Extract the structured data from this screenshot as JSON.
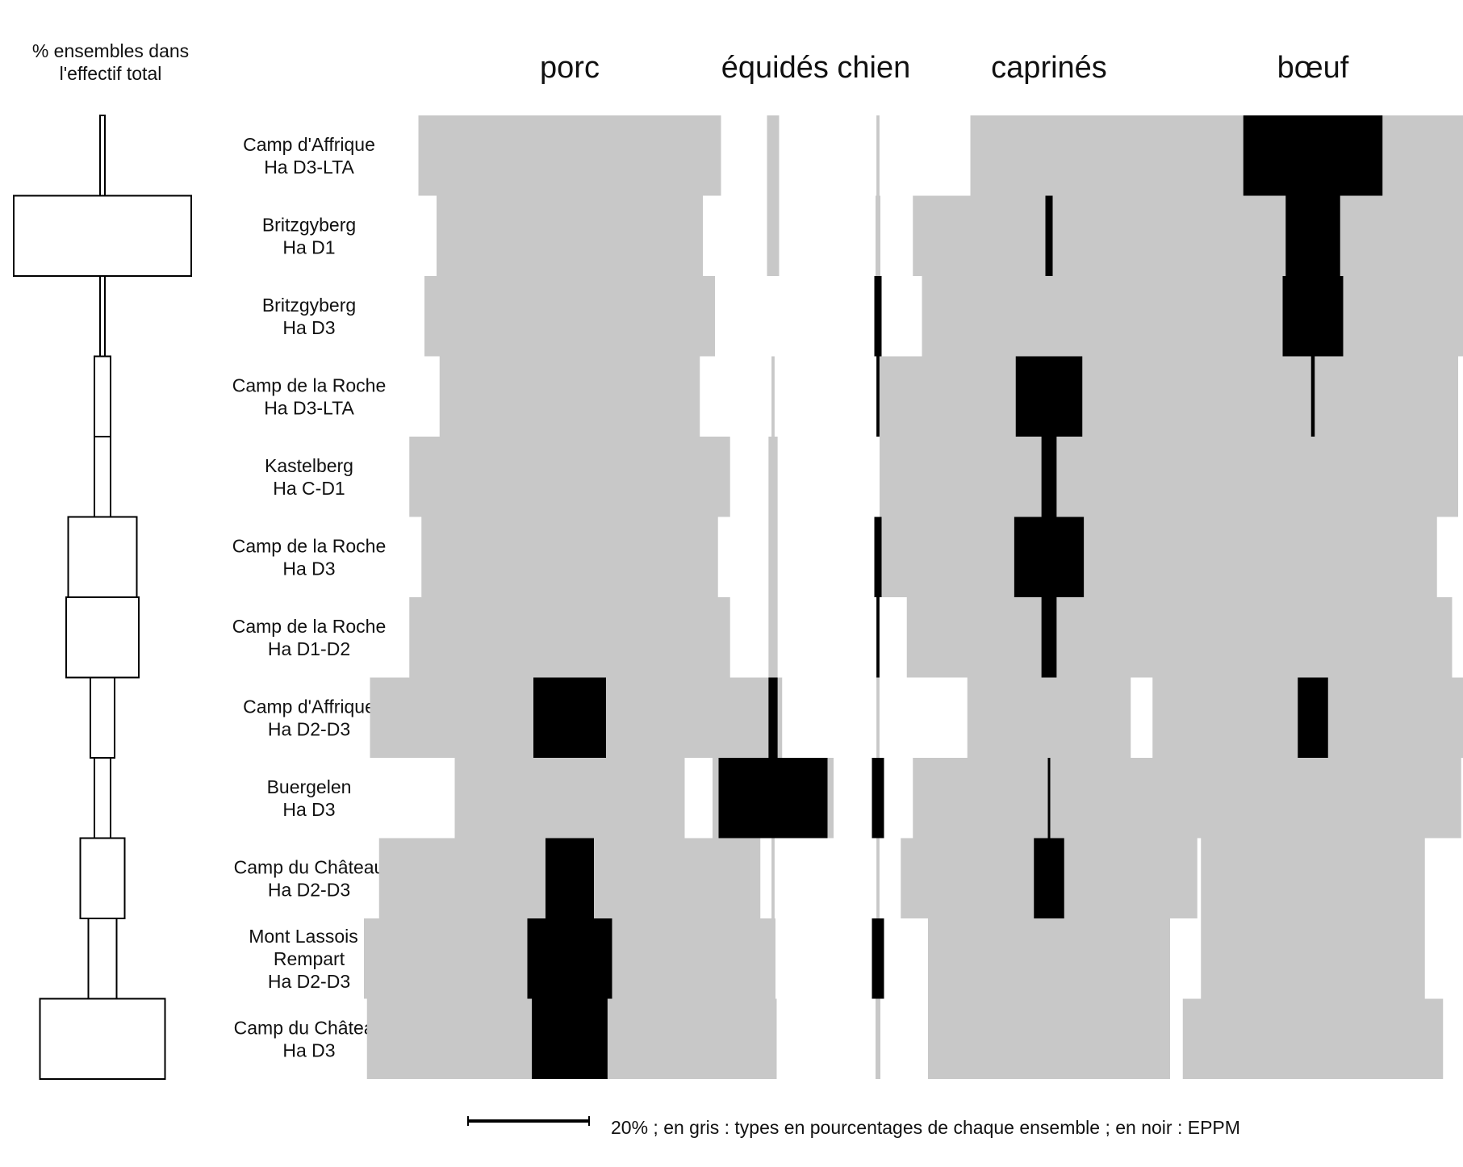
{
  "chart_data": {
    "type": "battleship",
    "left_title_lines": [
      "% ensembles dans",
      "l'effectif total"
    ],
    "columns": [
      "porc",
      "équidés",
      "chien",
      "caprinés",
      "bœuf"
    ],
    "column_titles": {
      "equides_chien": "équidés  chien"
    },
    "rows": [
      {
        "label": [
          "Camp d'Affrique",
          "Ha D3-LTA"
        ],
        "ensemble": 1,
        "percent": [
          50,
          2,
          0.5,
          26,
          71
        ],
        "eppm": [
          0,
          0,
          0,
          0,
          23
        ]
      },
      {
        "label": [
          "Britzgyberg",
          "Ha D1"
        ],
        "ensemble": 44,
        "percent": [
          44,
          2,
          0.8,
          45,
          57
        ],
        "eppm": [
          0,
          0,
          0,
          1.2,
          9
        ]
      },
      {
        "label": [
          "Britzgyberg",
          "Ha D3"
        ],
        "ensemble": 1,
        "percent": [
          48,
          0,
          0.8,
          42,
          57
        ],
        "eppm": [
          0,
          0,
          1.2,
          0,
          10
        ]
      },
      {
        "label": [
          "Camp de la Roche",
          "Ha D3-LTA"
        ],
        "ensemble": 4,
        "percent": [
          43,
          0.5,
          0.5,
          56,
          48
        ],
        "eppm": [
          0,
          0,
          0.5,
          11,
          0.6
        ]
      },
      {
        "label": [
          "Kastelberg",
          "Ha C-D1"
        ],
        "ensemble": 4,
        "percent": [
          53,
          1.5,
          0,
          56,
          48
        ],
        "eppm": [
          0,
          0,
          0,
          2.5,
          0
        ]
      },
      {
        "label": [
          "Camp de la Roche",
          "Ha D3"
        ],
        "ensemble": 17,
        "percent": [
          49,
          1.5,
          0.8,
          56,
          41
        ],
        "eppm": [
          0,
          0,
          1.2,
          11.5,
          0
        ]
      },
      {
        "label": [
          "Camp de la Roche",
          "Ha D1-D2"
        ],
        "ensemble": 18,
        "percent": [
          53,
          1.5,
          0.5,
          47,
          46
        ],
        "eppm": [
          0,
          0,
          0.5,
          2.5,
          0
        ]
      },
      {
        "label": [
          "Camp d'Affrique",
          "Ha D2-D3"
        ],
        "ensemble": 6,
        "percent": [
          66,
          3,
          0.5,
          27,
          53
        ],
        "eppm": [
          12,
          1.5,
          0,
          0,
          5
        ]
      },
      {
        "label": [
          "Buergelen",
          "Ha D3"
        ],
        "ensemble": 4,
        "percent": [
          38,
          20,
          1.5,
          45,
          49
        ],
        "eppm": [
          0,
          18,
          2,
          0.4,
          0
        ]
      },
      {
        "label": [
          "Camp du Château",
          "Ha D2-D3"
        ],
        "ensemble": 11,
        "percent": [
          63,
          0.5,
          0.5,
          49,
          37
        ],
        "eppm": [
          8,
          0,
          0,
          5,
          0
        ]
      },
      {
        "label": [
          "Mont Lassois -",
          "Rempart",
          "Ha D2-D3"
        ],
        "ensemble": 7,
        "percent": [
          68,
          0.5,
          0.8,
          40,
          37
        ],
        "eppm": [
          14,
          0,
          2,
          0,
          0
        ]
      },
      {
        "label": [
          "Camp du Château",
          "Ha D3"
        ],
        "ensemble": 31,
        "percent": [
          67,
          1.2,
          0.8,
          40,
          43
        ],
        "eppm": [
          12.5,
          0,
          0,
          0,
          0
        ]
      }
    ],
    "scale_bar_percent": 20,
    "footnote": "20% ; en gris : types en pourcentages  de chaque ensemble ; en noir : EPPM"
  }
}
